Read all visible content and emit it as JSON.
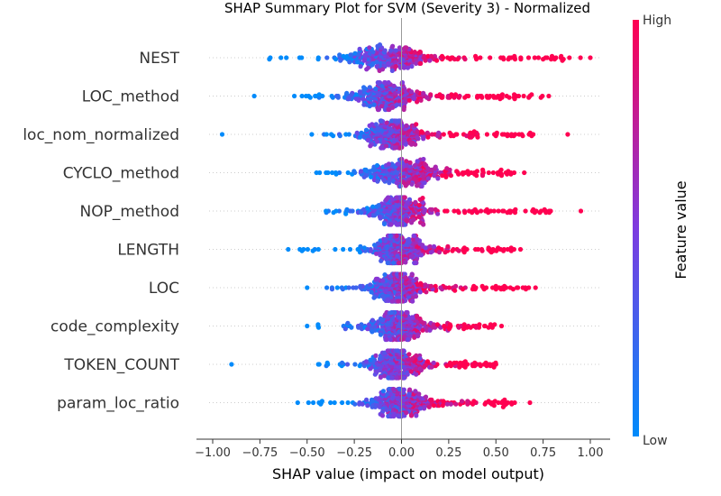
{
  "chart_data": {
    "type": "scatter",
    "title": "SHAP Summary Plot for SVM (Severity 3) - Normalized",
    "xlabel": "SHAP value (impact on model output)",
    "ylabel": "",
    "xlim": [
      -1.05,
      1.05
    ],
    "xticks": [
      -1.0,
      -0.75,
      -0.5,
      -0.25,
      0.0,
      0.25,
      0.5,
      0.75,
      1.0
    ],
    "xtick_labels": [
      "−1.00",
      "−0.75",
      "−0.50",
      "−0.25",
      "0.00",
      "0.25",
      "0.50",
      "0.75",
      "1.00"
    ],
    "features": [
      {
        "name": "NEST",
        "min": -0.7,
        "max": 1.0,
        "center": -0.08,
        "spread": 0.12,
        "pos_tail": 0.95,
        "neg_tail": -0.7
      },
      {
        "name": "LOC_method",
        "min": -0.78,
        "max": 0.78,
        "center": -0.08,
        "spread": 0.1,
        "pos_tail": 0.75,
        "neg_tail": -0.6
      },
      {
        "name": "loc_nom_normalized",
        "min": -0.95,
        "max": 0.88,
        "center": -0.05,
        "spread": 0.08,
        "pos_tail": 0.7,
        "neg_tail": -0.5
      },
      {
        "name": "CYCLO_method",
        "min": -0.45,
        "max": 0.65,
        "center": 0.0,
        "spread": 0.1,
        "pos_tail": 0.6,
        "neg_tail": -0.45
      },
      {
        "name": "NOP_method",
        "min": -0.4,
        "max": 0.95,
        "center": -0.02,
        "spread": 0.08,
        "pos_tail": 0.8,
        "neg_tail": -0.4
      },
      {
        "name": "LENGTH",
        "min": -0.6,
        "max": 0.63,
        "center": -0.02,
        "spread": 0.08,
        "pos_tail": 0.6,
        "neg_tail": -0.55
      },
      {
        "name": "LOC",
        "min": -0.5,
        "max": 0.71,
        "center": -0.03,
        "spread": 0.07,
        "pos_tail": 0.7,
        "neg_tail": -0.4
      },
      {
        "name": "code_complexity",
        "min": -0.5,
        "max": 0.53,
        "center": -0.02,
        "spread": 0.08,
        "pos_tail": 0.5,
        "neg_tail": -0.45
      },
      {
        "name": "TOKEN_COUNT",
        "min": -0.9,
        "max": 0.5,
        "center": -0.03,
        "spread": 0.08,
        "pos_tail": 0.5,
        "neg_tail": -0.45
      },
      {
        "name": "param_loc_ratio",
        "min": -0.55,
        "max": 0.68,
        "center": -0.02,
        "spread": 0.08,
        "pos_tail": 0.6,
        "neg_tail": -0.5
      }
    ],
    "colorbar": {
      "label": "Feature value",
      "high_label": "High",
      "low_label": "Low",
      "high_color": "#ff0051",
      "mid_color": "#7d3ce0",
      "low_color": "#008bfb"
    },
    "grid": false,
    "legend": "right"
  }
}
